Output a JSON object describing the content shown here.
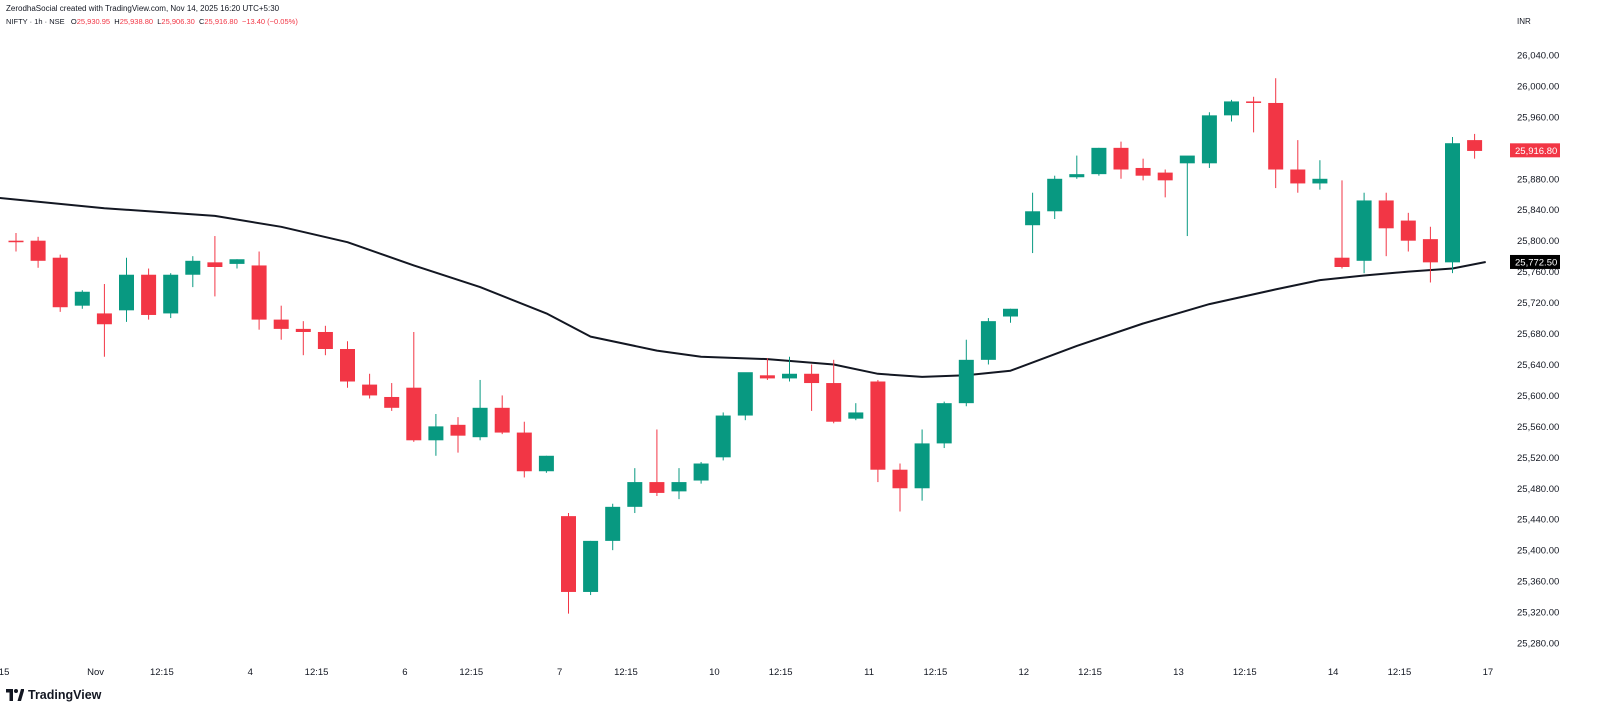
{
  "header": {
    "credit": "ZerodhaSocial created with TradingView.com, Nov 14, 2025 16:20 UTC+5:30",
    "symbol": "NIFTY · 1h · NSE",
    "open_label": "O",
    "open": "25,930.95",
    "high_label": "H",
    "high": "25,938.80",
    "low_label": "L",
    "low": "25,906.30",
    "close_label": "C",
    "close": "25,916.80",
    "change": "−13.40 (−0.05%)",
    "currency": "INR"
  },
  "brand": {
    "name": "TradingView",
    "icon": "tradingview-logo-icon"
  },
  "colors": {
    "up": "#089981",
    "down": "#f23645",
    "ma": "#131722",
    "axis_text": "#131722"
  },
  "price_tags": {
    "last": {
      "label": "25,916.80",
      "value": 25916.8,
      "color": "#f23645"
    },
    "ma": {
      "label": "25,772.50",
      "value": 25772.5,
      "color": "#000000"
    }
  },
  "chart_data": {
    "type": "candlestick",
    "title": "",
    "y_ticks": [
      {
        "value": 26040,
        "label": "26,040.00"
      },
      {
        "value": 26000,
        "label": "26,000.00"
      },
      {
        "value": 25960,
        "label": "25,960.00"
      },
      {
        "value": 25920,
        "label": "25,920.00"
      },
      {
        "value": 25880,
        "label": "25,880.00"
      },
      {
        "value": 25840,
        "label": "25,840.00"
      },
      {
        "value": 25800,
        "label": "25,800.00"
      },
      {
        "value": 25760,
        "label": "25,760.00"
      },
      {
        "value": 25720,
        "label": "25,720.00"
      },
      {
        "value": 25680,
        "label": "25,680.00"
      },
      {
        "value": 25640,
        "label": "25,640.00"
      },
      {
        "value": 25600,
        "label": "25,600.00"
      },
      {
        "value": 25560,
        "label": "25,560.00"
      },
      {
        "value": 25520,
        "label": "25,520.00"
      },
      {
        "value": 25480,
        "label": "25,480.00"
      },
      {
        "value": 25440,
        "label": "25,440.00"
      },
      {
        "value": 25400,
        "label": "25,400.00"
      },
      {
        "value": 25360,
        "label": "25,360.00"
      },
      {
        "value": 25320,
        "label": "25,320.00"
      },
      {
        "value": 25280,
        "label": "25,280.00"
      }
    ],
    "x_ticks": [
      {
        "index": -0.6,
        "label": ":15"
      },
      {
        "index": 3.6,
        "label": "Nov"
      },
      {
        "index": 6.6,
        "label": "12:15"
      },
      {
        "index": 10.6,
        "label": "4"
      },
      {
        "index": 13.6,
        "label": "12:15"
      },
      {
        "index": 17.6,
        "label": "6"
      },
      {
        "index": 20.6,
        "label": "12:15"
      },
      {
        "index": 24.6,
        "label": "7"
      },
      {
        "index": 27.6,
        "label": "12:15"
      },
      {
        "index": 31.6,
        "label": "10"
      },
      {
        "index": 34.6,
        "label": "12:15"
      },
      {
        "index": 38.6,
        "label": "11"
      },
      {
        "index": 41.6,
        "label": "12:15"
      },
      {
        "index": 45.6,
        "label": "12"
      },
      {
        "index": 48.6,
        "label": "12:15"
      },
      {
        "index": 52.6,
        "label": "13"
      },
      {
        "index": 55.6,
        "label": "12:15"
      },
      {
        "index": 59.6,
        "label": "14"
      },
      {
        "index": 62.6,
        "label": "12:15"
      },
      {
        "index": 66.6,
        "label": "17"
      }
    ],
    "candles": [
      [
        25800,
        25810,
        25786,
        25798
      ],
      [
        25800,
        25805,
        25765,
        25774
      ],
      [
        25778,
        25782,
        25708,
        25714
      ],
      [
        25716,
        25736,
        25712,
        25734
      ],
      [
        25706,
        25744,
        25650,
        25692
      ],
      [
        25710,
        25778,
        25695,
        25756
      ],
      [
        25756,
        25764,
        25698,
        25704
      ],
      [
        25706,
        25758,
        25700,
        25756
      ],
      [
        25756,
        25780,
        25740,
        25774
      ],
      [
        25772,
        25806,
        25728,
        25766
      ],
      [
        25770,
        25776,
        25764,
        25776
      ],
      [
        25768,
        25786,
        25685,
        25698
      ],
      [
        25698,
        25716,
        25672,
        25686
      ],
      [
        25686,
        25696,
        25652,
        25682
      ],
      [
        25682,
        25690,
        25652,
        25660
      ],
      [
        25660,
        25670,
        25610,
        25618
      ],
      [
        25614,
        25628,
        25596,
        25600
      ],
      [
        25598,
        25616,
        25580,
        25584
      ],
      [
        25610,
        25682,
        25540,
        25542
      ],
      [
        25542,
        25576,
        25522,
        25560
      ],
      [
        25562,
        25572,
        25526,
        25548
      ],
      [
        25546,
        25620,
        25542,
        25584
      ],
      [
        25584,
        25600,
        25550,
        25552
      ],
      [
        25552,
        25566,
        25494,
        25502
      ],
      [
        25502,
        25522,
        25500,
        25522
      ],
      [
        25444,
        25448,
        25318,
        25346
      ],
      [
        25346,
        25412,
        25342,
        25412
      ],
      [
        25412,
        25460,
        25400,
        25456
      ],
      [
        25456,
        25506,
        25448,
        25488
      ],
      [
        25488,
        25556,
        25470,
        25474
      ],
      [
        25476,
        25506,
        25466,
        25488
      ],
      [
        25490,
        25514,
        25486,
        25512
      ],
      [
        25520,
        25578,
        25516,
        25574
      ],
      [
        25574,
        25628,
        25568,
        25630
      ],
      [
        25626,
        25648,
        25620,
        25622
      ],
      [
        25622,
        25650,
        25618,
        25628
      ],
      [
        25628,
        25640,
        25580,
        25616
      ],
      [
        25616,
        25646,
        25564,
        25566
      ],
      [
        25570,
        25590,
        25568,
        25578
      ],
      [
        25618,
        25620,
        25488,
        25504
      ],
      [
        25504,
        25512,
        25450,
        25480
      ],
      [
        25480,
        25556,
        25464,
        25538
      ],
      [
        25538,
        25592,
        25532,
        25590
      ],
      [
        25590,
        25672,
        25586,
        25646
      ],
      [
        25646,
        25700,
        25640,
        25696
      ],
      [
        25702,
        25712,
        25694,
        25712
      ],
      [
        25820,
        25862,
        25784,
        25838
      ],
      [
        25838,
        25884,
        25828,
        25880
      ],
      [
        25882,
        25910,
        25880,
        25886
      ],
      [
        25886,
        25920,
        25884,
        25920
      ],
      [
        25920,
        25928,
        25880,
        25892
      ],
      [
        25894,
        25906,
        25878,
        25884
      ],
      [
        25888,
        25892,
        25856,
        25878
      ],
      [
        25900,
        25904,
        25806,
        25910
      ],
      [
        25900,
        25966,
        25894,
        25962
      ],
      [
        25962,
        25982,
        25954,
        25980
      ],
      [
        25980,
        25986,
        25940,
        25978
      ],
      [
        25978,
        26010,
        25868,
        25892
      ],
      [
        25892,
        25930,
        25862,
        25874
      ],
      [
        25874,
        25904,
        25866,
        25880
      ],
      [
        25778,
        25878,
        25764,
        25766
      ],
      [
        25774,
        25862,
        25758,
        25852
      ],
      [
        25852,
        25862,
        25780,
        25816
      ],
      [
        25826,
        25836,
        25786,
        25800
      ],
      [
        25802,
        25818,
        25746,
        25772
      ],
      [
        25772,
        25934,
        25758,
        25926
      ],
      [
        25930,
        25938,
        25906,
        25916
      ]
    ],
    "ma_series": {
      "name": "",
      "points": [
        [
          -1,
          25856
        ],
        [
          4,
          25842
        ],
        [
          9,
          25832
        ],
        [
          12,
          25818
        ],
        [
          15,
          25798
        ],
        [
          18,
          25768
        ],
        [
          21,
          25740
        ],
        [
          24,
          25706
        ],
        [
          26,
          25676
        ],
        [
          29,
          25658
        ],
        [
          31,
          25650
        ],
        [
          34,
          25647
        ],
        [
          37,
          25640
        ],
        [
          39,
          25628
        ],
        [
          41,
          25624
        ],
        [
          43,
          25626
        ],
        [
          45,
          25632
        ],
        [
          48,
          25664
        ],
        [
          51,
          25693
        ],
        [
          54,
          25718
        ],
        [
          57,
          25737
        ],
        [
          59,
          25749
        ],
        [
          61,
          25755
        ],
        [
          63,
          25760
        ],
        [
          65,
          25764
        ],
        [
          66.5,
          25772.5
        ]
      ]
    }
  }
}
